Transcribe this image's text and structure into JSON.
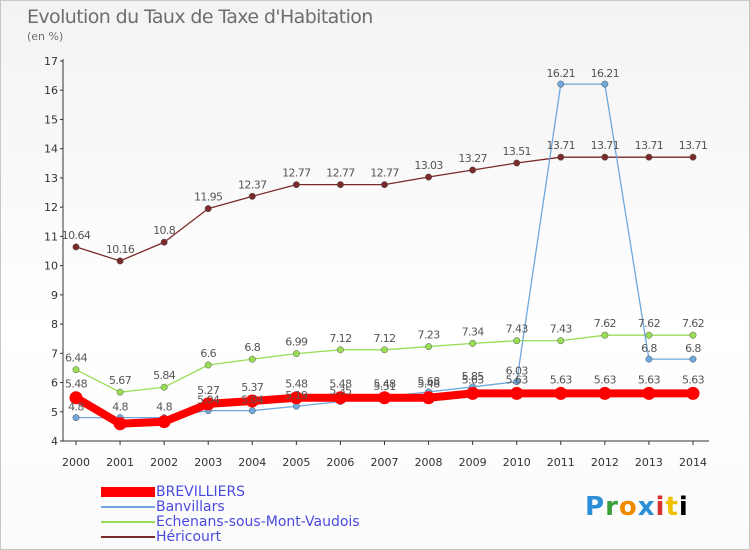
{
  "title": "Evolution du Taux de Taxe d'Habitation",
  "unit": "(en %)",
  "logo": "Proxiti",
  "chart_data": {
    "type": "line",
    "x": [
      "2000",
      "2001",
      "2002",
      "2003",
      "2004",
      "2005",
      "2006",
      "2007",
      "2008",
      "2009",
      "2010",
      "2011",
      "2012",
      "2013",
      "2014"
    ],
    "ylim": [
      4,
      17
    ],
    "yticks": [
      4,
      5,
      6,
      7,
      8,
      9,
      10,
      11,
      12,
      13,
      14,
      15,
      16,
      17
    ],
    "grid": false,
    "legend_position": "bottom-left",
    "series": [
      {
        "name": "BREVILLIERS",
        "color": "#ff0000",
        "values": [
          5.48,
          4.59,
          4.66,
          5.27,
          5.37,
          5.48,
          5.48,
          5.48,
          5.48,
          5.63,
          5.63,
          5.63,
          5.63,
          5.63,
          5.63
        ],
        "labels": [
          "5.48",
          "4.59",
          "4.66",
          "5.27",
          "5.37",
          "5.48",
          "5.48",
          "5.48",
          "5.48",
          "5.63",
          "5.63",
          "5.63",
          "5.63",
          "5.63",
          "5.63"
        ],
        "show_labels": [
          true,
          false,
          false,
          true,
          true,
          true,
          true,
          true,
          true,
          true,
          true,
          true,
          true,
          true,
          true
        ]
      },
      {
        "name": "Banvillars",
        "color": "#6fa8dc",
        "values": [
          4.8,
          4.8,
          4.8,
          5.04,
          5.04,
          5.19,
          5.35,
          5.51,
          5.68,
          5.85,
          6.03,
          16.21,
          16.21,
          6.8,
          6.8
        ],
        "labels": [
          "4.8",
          "4.8",
          "4.8",
          "5.04",
          "5.04",
          "5.19",
          "5.35",
          "5.51",
          "5.68",
          "5.85",
          "6.03",
          "16.21",
          "16.21",
          "6.8",
          "6.8"
        ],
        "show_labels": [
          true,
          true,
          true,
          true,
          true,
          true,
          true,
          true,
          true,
          true,
          true,
          true,
          true,
          true,
          true
        ]
      },
      {
        "name": "Echenans-sous-Mont-Vaudois",
        "color": "#99dd55",
        "values": [
          6.44,
          5.67,
          5.84,
          6.6,
          6.8,
          6.99,
          7.12,
          7.12,
          7.23,
          7.34,
          7.43,
          7.43,
          7.62,
          7.62,
          7.62
        ],
        "labels": [
          "6.44",
          "5.67",
          "5.84",
          "6.6",
          "6.8",
          "6.99",
          "7.12",
          "7.12",
          "7.23",
          "7.34",
          "7.43",
          "7.43",
          "7.62",
          "7.62",
          "7.62"
        ],
        "show_labels": [
          true,
          true,
          true,
          true,
          true,
          true,
          true,
          true,
          true,
          true,
          true,
          true,
          true,
          true,
          true
        ]
      },
      {
        "name": "Héricourt",
        "color": "#7a2a2a",
        "values": [
          10.64,
          10.16,
          10.8,
          11.95,
          12.37,
          12.77,
          12.77,
          12.77,
          13.03,
          13.27,
          13.51,
          13.71,
          13.71,
          13.71,
          13.71
        ],
        "labels": [
          "10.64",
          "10.16",
          "10.8",
          "11.95",
          "12.37",
          "12.77",
          "12.77",
          "12.77",
          "13.03",
          "13.27",
          "13.51",
          "13.71",
          "13.71",
          "13.71",
          "13.71"
        ],
        "show_labels": [
          true,
          true,
          true,
          true,
          true,
          true,
          true,
          true,
          true,
          true,
          true,
          true,
          true,
          true,
          true
        ]
      }
    ]
  }
}
